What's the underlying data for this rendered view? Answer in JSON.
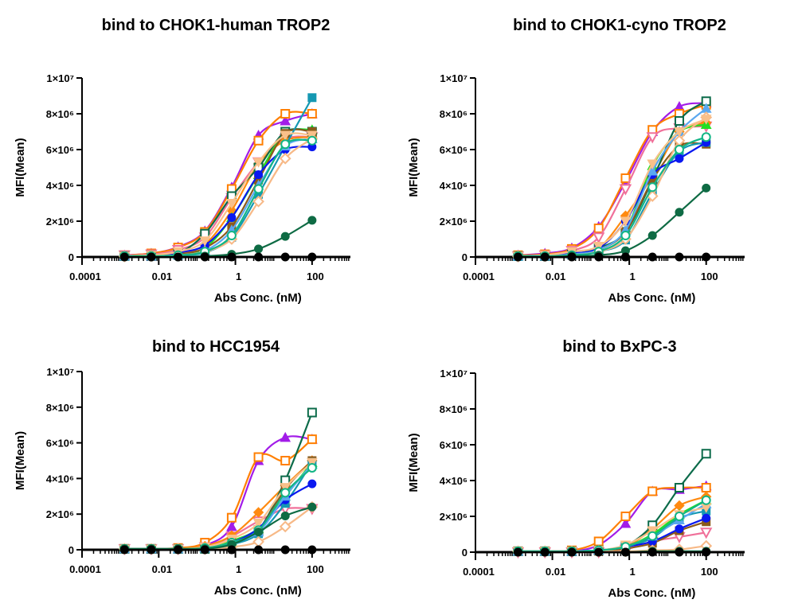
{
  "series_styles": [
    {
      "color": "#A21CE8",
      "marker": "triangle-up",
      "filled": true
    },
    {
      "color": "#FF7F00",
      "marker": "square",
      "filled": false
    },
    {
      "color": "#F0709A",
      "marker": "triangle-down",
      "filled": false
    },
    {
      "color": "#FF8A10",
      "marker": "diamond",
      "filled": true
    },
    {
      "color": "#22E022",
      "marker": "triangle-up",
      "filled": true
    },
    {
      "color": "#0C6B4A",
      "marker": "square",
      "filled": false
    },
    {
      "color": "#8B5A1B",
      "marker": "square",
      "filled": true
    },
    {
      "color": "#1598B2",
      "marker": "square",
      "filled": true
    },
    {
      "color": "#0A18F0",
      "marker": "circle",
      "filled": true
    },
    {
      "color": "#5AA8F0",
      "marker": "triangle-up",
      "filled": true
    },
    {
      "color": "#F7B987",
      "marker": "diamond",
      "filled": false
    },
    {
      "color": "#F9C08A",
      "marker": "triangle-down",
      "filled": true
    },
    {
      "color": "#12B585",
      "marker": "circle",
      "filled": false
    },
    {
      "color": "#0E6B44",
      "marker": "circle",
      "filled": true
    },
    {
      "color": "#000000",
      "marker": "circle",
      "filled": true
    }
  ],
  "chart_data": [
    {
      "type": "line",
      "title": "bind to CHOK1-human TROP2",
      "xlabel": "Abs Conc. (nM)",
      "ylabel": "MFI(Mean)",
      "xscale": "log",
      "xlim": [
        0.0001,
        1000
      ],
      "ylim": [
        0,
        10000000.0
      ],
      "grid": false,
      "legend": "none",
      "xticks": [
        {
          "v": 0.0001,
          "label": "0.0001"
        },
        {
          "v": 0.01,
          "label": "0.01"
        },
        {
          "v": 1,
          "label": "1"
        },
        {
          "v": 100,
          "label": "100"
        }
      ],
      "yticks": [
        {
          "v": 0,
          "label": "0"
        },
        {
          "v": 2000000.0,
          "label": "2×10⁶"
        },
        {
          "v": 4000000.0,
          "label": "4×10⁶"
        },
        {
          "v": 6000000.0,
          "label": "6×10⁶"
        },
        {
          "v": 8000000.0,
          "label": "8×10⁶"
        },
        {
          "v": 10000000.0,
          "label": "1×10⁷"
        }
      ],
      "x": [
        0.00128,
        0.0064,
        0.032,
        0.16,
        0.8,
        4,
        20,
        100
      ],
      "series": [
        {
          "values": [
            100000.0,
            200000.0,
            560000.0,
            1450000.0,
            3900000.0,
            6800000.0,
            7600000.0,
            8000000.0
          ]
        },
        {
          "values": [
            100000.0,
            200000.0,
            530000.0,
            1400000.0,
            3800000.0,
            6500000.0,
            8000000.0,
            8000000.0
          ]
        },
        {
          "values": [
            100000.0,
            150000.0,
            400000.0,
            1100000.0,
            3300000.0,
            5300000.0,
            6600000.0,
            6700000.0
          ]
        },
        {
          "values": [
            50000.0,
            100000.0,
            200000.0,
            700000.0,
            2600000.0,
            5200000.0,
            6500000.0,
            6700000.0
          ]
        },
        {
          "values": [
            50000.0,
            100000.0,
            150000.0,
            500000.0,
            2200000.0,
            4600000.0,
            6900000.0,
            7100000.0
          ]
        },
        {
          "values": [
            50000.0,
            80000.0,
            200000.0,
            1300000.0,
            3400000.0,
            5000000.0,
            7000000.0,
            7000000.0
          ]
        },
        {
          "values": [
            50000.0,
            80000.0,
            150000.0,
            500000.0,
            1700000.0,
            4300000.0,
            6900000.0,
            7000000.0
          ]
        },
        {
          "values": [
            50000.0,
            50000.0,
            100000.0,
            250000.0,
            1100000.0,
            3500000.0,
            6200000.0,
            8900000.0
          ]
        },
        {
          "values": [
            50000.0,
            50000.0,
            250000.0,
            650000.0,
            2200000.0,
            4600000.0,
            6000000.0,
            6150000.0
          ]
        },
        {
          "values": [
            50000.0,
            50000.0,
            100000.0,
            350000.0,
            1500000.0,
            4000000.0,
            6200000.0,
            6600000.0
          ]
        },
        {
          "values": [
            30000.0,
            50000.0,
            100000.0,
            300000.0,
            1000000.0,
            3100000.0,
            5500000.0,
            6600000.0
          ]
        },
        {
          "values": [
            50000.0,
            100000.0,
            300000.0,
            900000.0,
            3000000.0,
            5300000.0,
            6800000.0,
            6800000.0
          ]
        },
        {
          "values": [
            50000.0,
            50000.0,
            100000.0,
            300000.0,
            1200000.0,
            3800000.0,
            6300000.0,
            6500000.0
          ]
        },
        {
          "values": [
            0,
            0,
            0,
            50000.0,
            150000.0,
            450000.0,
            1150000.0,
            2050000.0
          ]
        },
        {
          "values": [
            0,
            0,
            0,
            0,
            0,
            0,
            0,
            0
          ]
        }
      ]
    },
    {
      "type": "line",
      "title": "bind to CHOK1-cyno TROP2",
      "xlabel": "Abs Conc. (nM)",
      "ylabel": "MFI(Mean)",
      "xscale": "log",
      "xlim": [
        0.0001,
        1000
      ],
      "ylim": [
        0,
        10000000.0
      ],
      "grid": false,
      "legend": "none",
      "xticks": [
        {
          "v": 0.0001,
          "label": "0.0001"
        },
        {
          "v": 0.01,
          "label": "0.01"
        },
        {
          "v": 1,
          "label": "1"
        },
        {
          "v": 100,
          "label": "100"
        }
      ],
      "yticks": [
        {
          "v": 0,
          "label": "0"
        },
        {
          "v": 2000000.0,
          "label": "2×10⁶"
        },
        {
          "v": 4000000.0,
          "label": "4×10⁶"
        },
        {
          "v": 6000000.0,
          "label": "6×10⁶"
        },
        {
          "v": 8000000.0,
          "label": "8×10⁶"
        },
        {
          "v": 10000000.0,
          "label": "1×10⁷"
        }
      ],
      "x": [
        0.00128,
        0.0064,
        0.032,
        0.16,
        0.8,
        4,
        20,
        100
      ],
      "series": [
        {
          "values": [
            100000.0,
            200000.0,
            500000.0,
            1700000.0,
            4200000.0,
            7000000.0,
            8400000.0,
            8600000.0
          ]
        },
        {
          "values": [
            100000.0,
            150000.0,
            450000.0,
            1600000.0,
            4400000.0,
            7100000.0,
            8000000.0,
            8500000.0
          ]
        },
        {
          "values": [
            50000.0,
            100000.0,
            350000.0,
            1100000.0,
            3800000.0,
            6700000.0,
            7200000.0,
            7300000.0
          ]
        },
        {
          "values": [
            50000.0,
            80000.0,
            200000.0,
            500000.0,
            2300000.0,
            4500000.0,
            7000000.0,
            7500000.0
          ]
        },
        {
          "values": [
            50000.0,
            50000.0,
            150000.0,
            400000.0,
            1500000.0,
            5100000.0,
            7000000.0,
            7400000.0
          ]
        },
        {
          "values": [
            50000.0,
            50000.0,
            150000.0,
            500000.0,
            1400000.0,
            4300000.0,
            7600000.0,
            8700000.0
          ]
        },
        {
          "values": [
            50000.0,
            50000.0,
            100000.0,
            400000.0,
            1400000.0,
            4300000.0,
            6200000.0,
            6300000.0
          ]
        },
        {
          "values": [
            30000.0,
            50000.0,
            100000.0,
            300000.0,
            950000.0,
            3600000.0,
            5900000.0,
            6400000.0
          ]
        },
        {
          "values": [
            50000.0,
            100000.0,
            200000.0,
            500000.0,
            2000000.0,
            4600000.0,
            5500000.0,
            6400000.0
          ]
        },
        {
          "values": [
            50000.0,
            50000.0,
            150000.0,
            400000.0,
            1500000.0,
            4800000.0,
            7000000.0,
            8300000.0
          ]
        },
        {
          "values": [
            30000.0,
            50000.0,
            100000.0,
            300000.0,
            1000000.0,
            3400000.0,
            6500000.0,
            7800000.0
          ]
        },
        {
          "values": [
            50000.0,
            100000.0,
            300000.0,
            600000.0,
            2000000.0,
            5200000.0,
            7000000.0,
            7700000.0
          ]
        },
        {
          "values": [
            50000.0,
            50000.0,
            100000.0,
            300000.0,
            1200000.0,
            3900000.0,
            6000000.0,
            6700000.0
          ]
        },
        {
          "values": [
            0,
            0,
            50000.0,
            100000.0,
            350000.0,
            1200000.0,
            2500000.0,
            3850000.0
          ]
        },
        {
          "values": [
            0,
            0,
            0,
            0,
            0,
            0,
            0,
            0
          ]
        }
      ]
    },
    {
      "type": "line",
      "title": "bind to HCC1954",
      "xlabel": "Abs Conc. (nM)",
      "ylabel": "MFI(Mean)",
      "xscale": "log",
      "xlim": [
        0.0001,
        1000
      ],
      "ylim": [
        0,
        10000000.0
      ],
      "grid": false,
      "legend": "none",
      "xticks": [
        {
          "v": 0.0001,
          "label": "0.0001"
        },
        {
          "v": 0.01,
          "label": "0.01"
        },
        {
          "v": 1,
          "label": "1"
        },
        {
          "v": 100,
          "label": "100"
        }
      ],
      "yticks": [
        {
          "v": 0,
          "label": "0"
        },
        {
          "v": 2000000.0,
          "label": "2×10⁶"
        },
        {
          "v": 4000000.0,
          "label": "4×10⁶"
        },
        {
          "v": 6000000.0,
          "label": "6×10⁶"
        },
        {
          "v": 8000000.0,
          "label": "8×10⁶"
        },
        {
          "v": 10000000.0,
          "label": "1×10⁷"
        }
      ],
      "x": [
        0.00128,
        0.0064,
        0.032,
        0.16,
        0.8,
        4,
        20,
        100
      ],
      "series": [
        {
          "values": [
            50000.0,
            50000.0,
            50000.0,
            250000.0,
            1300000.0,
            5000000.0,
            6300000.0,
            6200000.0
          ]
        },
        {
          "values": [
            50000.0,
            50000.0,
            100000.0,
            400000.0,
            1800000.0,
            5200000.0,
            5000000.0,
            6200000.0
          ]
        },
        {
          "values": [
            50000.0,
            50000.0,
            50000.0,
            150000.0,
            750000.0,
            1600000.0,
            2300000.0,
            2300000.0
          ]
        },
        {
          "values": [
            50000.0,
            50000.0,
            50000.0,
            200000.0,
            800000.0,
            2100000.0,
            3600000.0,
            5000000.0
          ]
        },
        {
          "values": [
            50000.0,
            50000.0,
            50000.0,
            100000.0,
            500000.0,
            1200000.0,
            3000000.0,
            4900000.0
          ]
        },
        {
          "values": [
            50000.0,
            50000.0,
            50000.0,
            50000.0,
            300000.0,
            1100000.0,
            3900000.0,
            7700000.0
          ]
        },
        {
          "values": [
            50000.0,
            50000.0,
            50000.0,
            100000.0,
            400000.0,
            1100000.0,
            3400000.0,
            5000000.0
          ]
        },
        {
          "values": [
            50000.0,
            50000.0,
            50000.0,
            100000.0,
            300000.0,
            900000.0,
            2600000.0,
            4900000.0
          ]
        },
        {
          "values": [
            50000.0,
            50000.0,
            50000.0,
            100000.0,
            400000.0,
            1200000.0,
            2800000.0,
            3700000.0
          ]
        },
        {
          "values": [
            50000.0,
            50000.0,
            50000.0,
            100000.0,
            400000.0,
            1000000.0,
            3000000.0,
            4800000.0
          ]
        },
        {
          "values": [
            50000.0,
            50000.0,
            50000.0,
            50000.0,
            150000.0,
            450000.0,
            1300000.0,
            2400000.0
          ]
        },
        {
          "values": [
            50000.0,
            50000.0,
            50000.0,
            150000.0,
            600000.0,
            1500000.0,
            3500000.0,
            4900000.0
          ]
        },
        {
          "values": [
            50000.0,
            50000.0,
            50000.0,
            100000.0,
            400000.0,
            1100000.0,
            3200000.0,
            4600000.0
          ]
        },
        {
          "values": [
            50000.0,
            50000.0,
            50000.0,
            50000.0,
            300000.0,
            1000000.0,
            1900000.0,
            2400000.0
          ]
        },
        {
          "values": [
            0,
            0,
            0,
            0,
            0,
            0,
            0,
            0
          ]
        }
      ]
    },
    {
      "type": "line",
      "title": "bind to BxPC-3",
      "xlabel": "Abs Conc. (nM)",
      "ylabel": "MFI(Mean)",
      "xscale": "log",
      "xlim": [
        0.0001,
        1000
      ],
      "ylim": [
        0,
        10000000.0
      ],
      "grid": false,
      "legend": "none",
      "xticks": [
        {
          "v": 0.0001,
          "label": "0.0001"
        },
        {
          "v": 0.01,
          "label": "0.01"
        },
        {
          "v": 1,
          "label": "1"
        },
        {
          "v": 100,
          "label": "100"
        }
      ],
      "yticks": [
        {
          "v": 0,
          "label": "0"
        },
        {
          "v": 2000000.0,
          "label": "2×10⁶"
        },
        {
          "v": 4000000.0,
          "label": "4×10⁶"
        },
        {
          "v": 6000000.0,
          "label": "6×10⁶"
        },
        {
          "v": 8000000.0,
          "label": "8×10⁶"
        },
        {
          "v": 10000000.0,
          "label": "1×10⁷"
        }
      ],
      "x": [
        0.00128,
        0.0064,
        0.032,
        0.16,
        0.8,
        4,
        20,
        100
      ],
      "series": [
        {
          "values": [
            50000.0,
            50000.0,
            50000.0,
            400000.0,
            1600000.0,
            3400000.0,
            3500000.0,
            3700000.0
          ]
        },
        {
          "values": [
            50000.0,
            50000.0,
            100000.0,
            600000.0,
            2000000.0,
            3400000.0,
            3600000.0,
            3600000.0
          ]
        },
        {
          "values": [
            0,
            0,
            0,
            0,
            150000.0,
            600000.0,
            850000.0,
            1100000.0
          ]
        },
        {
          "values": [
            50000.0,
            50000.0,
            50000.0,
            100000.0,
            300000.0,
            1300000.0,
            2600000.0,
            3100000.0
          ]
        },
        {
          "values": [
            50000.0,
            50000.0,
            50000.0,
            100000.0,
            300000.0,
            1000000.0,
            2100000.0,
            2900000.0
          ]
        },
        {
          "values": [
            50000.0,
            50000.0,
            50000.0,
            100000.0,
            350000.0,
            1500000.0,
            3600000.0,
            5500000.0
          ]
        },
        {
          "values": [
            50000.0,
            50000.0,
            50000.0,
            50000.0,
            200000.0,
            500000.0,
            1200000.0,
            1700000.0
          ]
        },
        {
          "values": [
            50000.0,
            50000.0,
            50000.0,
            100000.0,
            300000.0,
            800000.0,
            1900000.0,
            2300000.0
          ]
        },
        {
          "values": [
            50000.0,
            50000.0,
            50000.0,
            100000.0,
            300000.0,
            600000.0,
            1300000.0,
            1900000.0
          ]
        },
        {
          "values": [
            50000.0,
            50000.0,
            50000.0,
            100000.0,
            300000.0,
            900000.0,
            1800000.0,
            2700000.0
          ]
        },
        {
          "values": [
            50000.0,
            50000.0,
            50000.0,
            50000.0,
            50000.0,
            100000.0,
            150000.0,
            350000.0
          ]
        },
        {
          "values": [
            50000.0,
            50000.0,
            50000.0,
            100000.0,
            400000.0,
            1200000.0,
            2100000.0,
            2500000.0
          ]
        },
        {
          "values": [
            50000.0,
            50000.0,
            50000.0,
            100000.0,
            300000.0,
            900000.0,
            2000000.0,
            2900000.0
          ]
        },
        {
          "values": [
            0,
            0,
            0,
            0,
            0,
            50000.0,
            50000.0,
            50000.0
          ]
        },
        {
          "values": [
            0,
            0,
            0,
            0,
            0,
            0,
            0,
            0
          ]
        }
      ]
    }
  ]
}
